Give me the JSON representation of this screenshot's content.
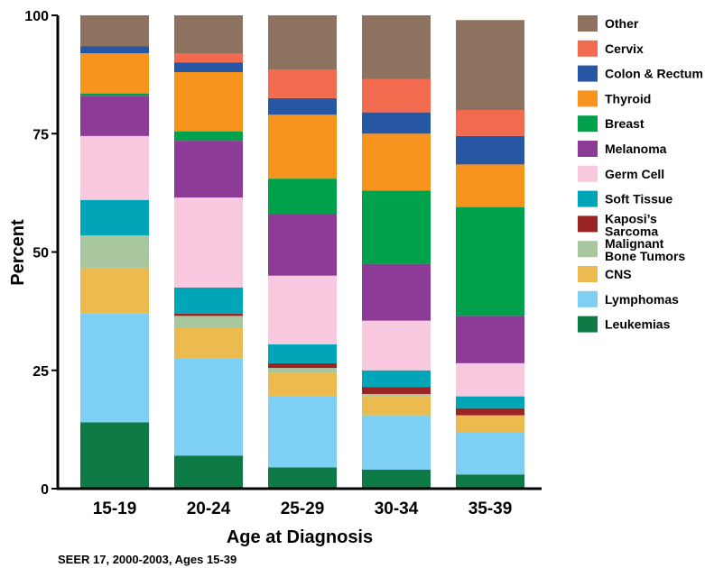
{
  "chart_data": {
    "type": "bar",
    "stacked": true,
    "xlabel": "Age at Diagnosis",
    "ylabel": "Percent",
    "ylim": [
      0,
      100
    ],
    "yticks": [
      0,
      25,
      50,
      75,
      100
    ],
    "categories": [
      "15-19",
      "20-24",
      "25-29",
      "30-34",
      "35-39"
    ],
    "legend_position": "right",
    "series": [
      {
        "name": "Leukemias",
        "label": "Leukemias",
        "color": "#0e7a46",
        "values": [
          14.0,
          7.0,
          4.5,
          4.0,
          3.0
        ]
      },
      {
        "name": "Lymphomas",
        "label": "Lymphomas",
        "color": "#7dd0f3",
        "values": [
          23.0,
          20.5,
          15.0,
          11.5,
          9.0
        ]
      },
      {
        "name": "CNS",
        "label": "CNS",
        "color": "#ecbb4f",
        "values": [
          9.5,
          6.5,
          5.0,
          4.0,
          3.5
        ]
      },
      {
        "name": "Malignant Bone Tumors",
        "label": [
          "Malignant",
          "Bone Tumors"
        ],
        "color": "#a8c79f",
        "values": [
          7.0,
          2.5,
          1.0,
          0.5,
          0.0
        ]
      },
      {
        "name": "Kaposi's Sarcoma",
        "label": [
          "Kaposi’s",
          "Sarcoma"
        ],
        "color": "#9a2424",
        "values": [
          0.0,
          0.5,
          1.0,
          1.5,
          1.5
        ]
      },
      {
        "name": "Soft Tissue",
        "label": "Soft Tissue",
        "color": "#00a6b8",
        "values": [
          7.5,
          5.5,
          4.0,
          3.5,
          2.5
        ]
      },
      {
        "name": "Germ Cell",
        "label": "Germ Cell",
        "color": "#f8c9df",
        "values": [
          13.5,
          19.0,
          14.5,
          10.5,
          7.0
        ]
      },
      {
        "name": "Melanoma",
        "label": "Melanoma",
        "color": "#8c3b96",
        "values": [
          8.5,
          12.0,
          13.0,
          12.0,
          10.0
        ]
      },
      {
        "name": "Breast",
        "label": "Breast",
        "color": "#00a14b",
        "values": [
          0.5,
          2.0,
          7.5,
          15.5,
          23.0
        ]
      },
      {
        "name": "Thyroid",
        "label": "Thyroid",
        "color": "#f7941d",
        "values": [
          8.5,
          12.5,
          13.5,
          12.0,
          9.0
        ]
      },
      {
        "name": "Colon & Rectum",
        "label": "Colon & Rectum",
        "color": "#2756a5",
        "values": [
          1.5,
          2.0,
          3.5,
          4.5,
          6.0
        ]
      },
      {
        "name": "Cervix",
        "label": "Cervix",
        "color": "#f26b4f",
        "values": [
          0.0,
          2.0,
          6.0,
          7.0,
          5.5
        ]
      },
      {
        "name": "Other",
        "label": "Other",
        "color": "#8c725f",
        "values": [
          6.5,
          8.0,
          11.5,
          13.5,
          19.0
        ]
      }
    ],
    "legend_order": [
      "Other",
      "Cervix",
      "Colon & Rectum",
      "Thyroid",
      "Breast",
      "Melanoma",
      "Germ Cell",
      "Soft Tissue",
      "Kaposi's Sarcoma",
      "Malignant Bone Tumors",
      "CNS",
      "Lymphomas",
      "Leukemias"
    ]
  },
  "source_note": "SEER 17, 2000-2003, Ages 15-39"
}
